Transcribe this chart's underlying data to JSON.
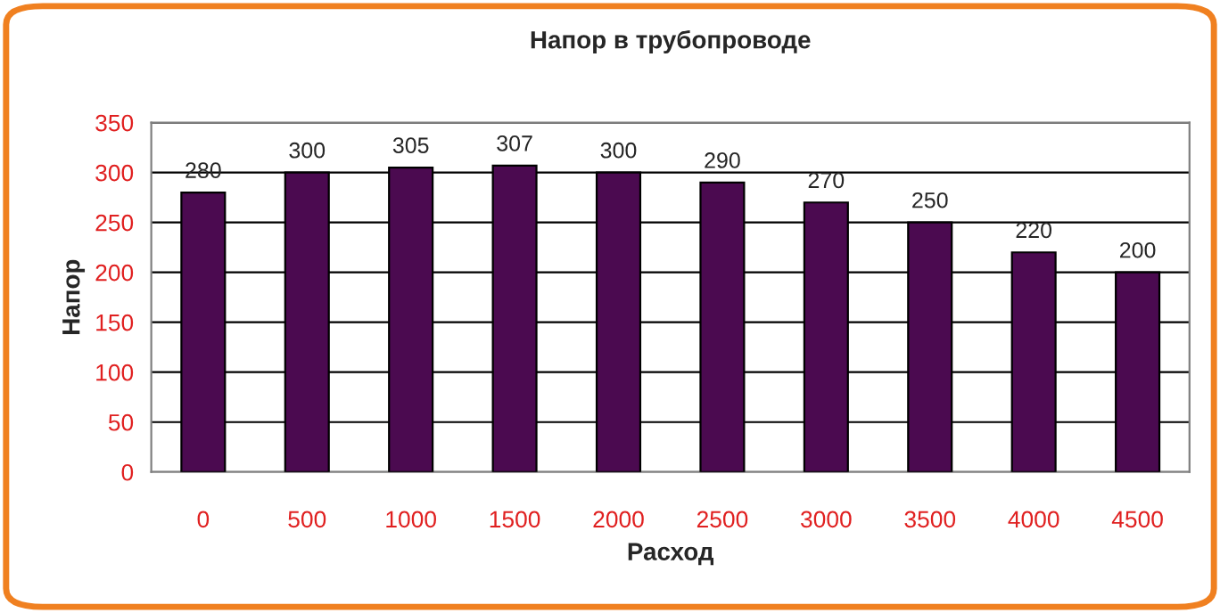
{
  "chart_data": {
    "type": "bar",
    "title": "Напор в трубопроводе",
    "xlabel": "Расход",
    "ylabel": "Напор",
    "categories": [
      "0",
      "500",
      "1000",
      "1500",
      "2000",
      "2500",
      "3000",
      "3500",
      "4000",
      "4500"
    ],
    "values": [
      280,
      300,
      305,
      307,
      300,
      290,
      270,
      250,
      220,
      200
    ],
    "color": "#4b0a50",
    "ylim": [
      0,
      350
    ],
    "yticks": [
      0,
      50,
      100,
      150,
      200,
      250,
      300,
      350
    ],
    "grid": "y",
    "data_labels": true
  }
}
